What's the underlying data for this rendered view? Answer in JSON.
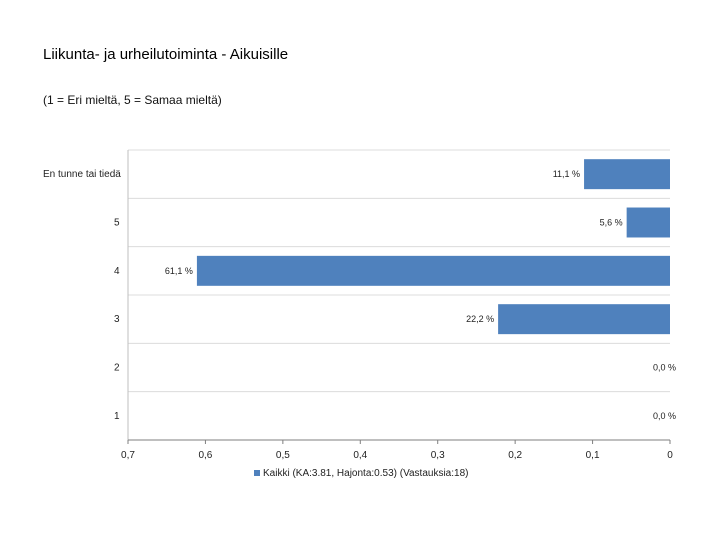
{
  "title": "Liikunta- ja urheilutoiminta - Aikuisille",
  "subtitle": "(1 = Eri mieltä, 5 = Samaa mieltä)",
  "chart_data": {
    "type": "bar",
    "orientation": "horizontal",
    "x_reversed": true,
    "categories": [
      "En tunne tai tiedä",
      "5",
      "4",
      "3",
      "2",
      "1"
    ],
    "values": [
      0.111,
      0.056,
      0.611,
      0.222,
      0.0,
      0.0
    ],
    "data_labels": [
      "11,1 %",
      "5,6 %",
      "61,1 %",
      "22,2 %",
      "0,0 %",
      "0,0 %"
    ],
    "xlim": [
      0,
      0.7
    ],
    "x_ticks": [
      0.7,
      0.6,
      0.5,
      0.4,
      0.3,
      0.2,
      0.1,
      0
    ],
    "x_tick_labels": [
      "0,7",
      "0,6",
      "0,5",
      "0,4",
      "0,3",
      "0,2",
      "0,1",
      "0"
    ],
    "series": [
      {
        "name": "Kaikki (KA:3.81, Hajonta:0.53) (Vastauksia:18)",
        "color": "#4f81bd"
      }
    ],
    "legend_position": "bottom",
    "grid": true
  }
}
